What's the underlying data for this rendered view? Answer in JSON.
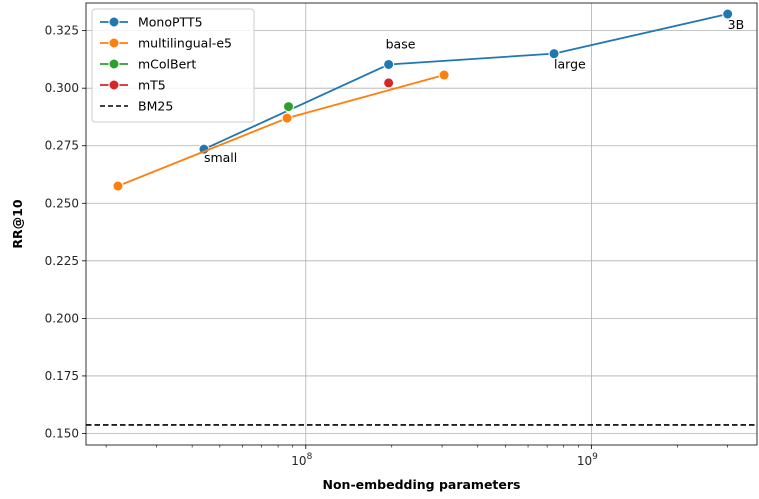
{
  "chart_data": {
    "type": "line",
    "xscale": "log",
    "xlabel": "Non-embedding parameters",
    "ylabel": "RR@10",
    "xlim": [
      17000000,
      3800000000
    ],
    "ylim": [
      0.145,
      0.337
    ],
    "yticks": [
      0.15,
      0.175,
      0.2,
      0.225,
      0.25,
      0.275,
      0.3,
      0.325
    ],
    "ytick_labels": [
      "0.150",
      "0.175",
      "0.200",
      "0.225",
      "0.250",
      "0.275",
      "0.300",
      "0.325"
    ],
    "xticks": [
      {
        "value": 100000000,
        "base": "10",
        "exp": "8"
      },
      {
        "value": 1000000000,
        "base": "10",
        "exp": "9"
      }
    ],
    "grid": true,
    "legend_position": "top-left",
    "series": [
      {
        "name": "MonoPTT5",
        "color": "#1f77b4",
        "style": "line-marker",
        "x": [
          44000000,
          195000000,
          740000000,
          3000000000
        ],
        "y": [
          0.2735,
          0.3103,
          0.315,
          0.3322
        ],
        "point_labels": [
          "small",
          "base",
          "large",
          "3B"
        ]
      },
      {
        "name": "multilingual-e5",
        "color": "#ff7f0e",
        "style": "line-marker",
        "x": [
          22000000,
          86000000,
          305000000
        ],
        "y": [
          0.2575,
          0.287,
          0.3057
        ],
        "point_labels": [
          "",
          "",
          ""
        ]
      },
      {
        "name": "mColBert",
        "color": "#2ca02c",
        "style": "marker",
        "x": [
          87000000
        ],
        "y": [
          0.292
        ],
        "point_labels": [
          ""
        ]
      },
      {
        "name": "mT5",
        "color": "#d62728",
        "style": "marker",
        "x": [
          195000000
        ],
        "y": [
          0.3023
        ],
        "point_labels": [
          ""
        ]
      },
      {
        "name": "BM25",
        "color": "#000000",
        "style": "hline-dashed",
        "y": 0.1537
      }
    ]
  }
}
